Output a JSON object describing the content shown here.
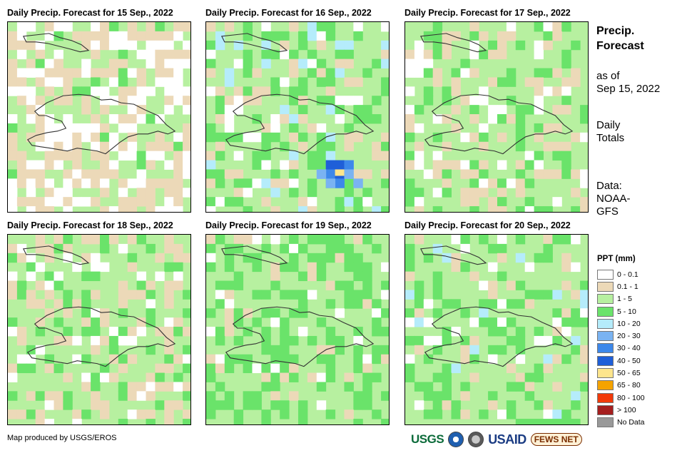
{
  "panels": [
    {
      "title": "Daily Precip. Forecast for 15 Sep., 2022"
    },
    {
      "title": "Daily Precip. Forecast for 16 Sep., 2022"
    },
    {
      "title": "Daily Precip. Forecast for 17 Sep., 2022"
    },
    {
      "title": "Daily Precip. Forecast for 18 Sep., 2022"
    },
    {
      "title": "Daily Precip. Forecast for 19 Sep., 2022"
    },
    {
      "title": "Daily Precip. Forecast for 20 Sep., 2022"
    }
  ],
  "sidebar": {
    "title_line1": "Precip.",
    "title_line2": "Forecast",
    "asof_line1": "as of",
    "asof_line2": "Sep 15, 2022",
    "daily_line1": "Daily",
    "daily_line2": "Totals",
    "data_line1": "Data:",
    "data_line2": "NOAA-",
    "data_line3": "GFS"
  },
  "legend": {
    "title": "PPT (mm)",
    "items": [
      {
        "label": "0 - 0.1",
        "color": "#ffffff"
      },
      {
        "label": "0.1 - 1",
        "color": "#ecd9b8"
      },
      {
        "label": "1 - 5",
        "color": "#b7f0a0"
      },
      {
        "label": "5 - 10",
        "color": "#6ae36a"
      },
      {
        "label": "10 - 20",
        "color": "#b5ecfb"
      },
      {
        "label": "20 - 30",
        "color": "#7ab3f2"
      },
      {
        "label": "30 - 40",
        "color": "#3d88ea"
      },
      {
        "label": "40 - 50",
        "color": "#1f5fd8"
      },
      {
        "label": "50 - 65",
        "color": "#fde58c"
      },
      {
        "label": "65 - 80",
        "color": "#f5a300"
      },
      {
        "label": "80 - 100",
        "color": "#f23a0a"
      },
      {
        "label": "> 100",
        "color": "#a51e1e"
      },
      {
        "label": "No Data",
        "color": "#999999"
      }
    ]
  },
  "credit": "Map produced by USGS/EROS",
  "logos": {
    "usgs": "USGS",
    "usaid": "USAID",
    "fews": "FEWS NET"
  }
}
